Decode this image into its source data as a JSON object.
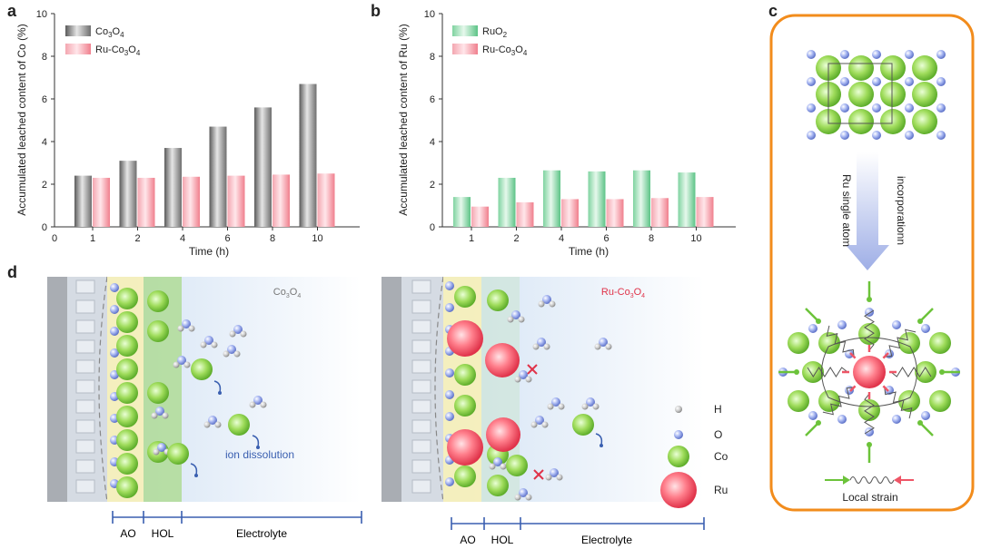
{
  "panels": {
    "a": "a",
    "b": "b",
    "c": "c",
    "d": "d"
  },
  "chart_data": [
    {
      "id": "a",
      "type": "bar",
      "xlabel": "Time (h)",
      "ylabel": "Accumulated leached content of Co (%)",
      "ylim": [
        0,
        10
      ],
      "yticks": [
        "0",
        "2",
        "4",
        "6",
        "8",
        "10"
      ],
      "x_zero_label": "0",
      "categories": [
        "1",
        "2",
        "4",
        "6",
        "8",
        "10"
      ],
      "series": [
        {
          "name": "Co3O4",
          "label_parts": [
            "Co",
            "3",
            "O",
            "4"
          ],
          "values": [
            2.4,
            3.1,
            3.7,
            4.7,
            5.6,
            6.7
          ],
          "color": "#8a8a8a"
        },
        {
          "name": "Ru-Co3O4",
          "label_parts": [
            "Ru-Co",
            "3",
            "O",
            "4"
          ],
          "values": [
            2.3,
            2.3,
            2.35,
            2.4,
            2.45,
            2.5
          ],
          "color": "#f26d7d"
        }
      ]
    },
    {
      "id": "b",
      "type": "bar",
      "xlabel": "Time (h)",
      "ylabel": "Accumulated leached content of Ru (%)",
      "ylim": [
        0,
        10
      ],
      "yticks": [
        "0",
        "2",
        "4",
        "6",
        "8",
        "10"
      ],
      "categories": [
        "1",
        "2",
        "4",
        "6",
        "8",
        "10"
      ],
      "series": [
        {
          "name": "RuO2",
          "label_parts": [
            "RuO",
            "2",
            "",
            ""
          ],
          "values": [
            1.4,
            2.3,
            2.65,
            2.6,
            2.65,
            2.55
          ],
          "color": "#5dc88a"
        },
        {
          "name": "Ru-Co3O4",
          "label_parts": [
            "Ru-Co",
            "3",
            "O",
            "4"
          ],
          "values": [
            0.95,
            1.15,
            1.3,
            1.3,
            1.35,
            1.4
          ],
          "color": "#f26d7d"
        }
      ]
    }
  ],
  "panel_c": {
    "arrow_left_label": "Ru single atom",
    "arrow_right_label": "incorporationn",
    "local_strain": "Local strain"
  },
  "panel_d": {
    "left_title_parts": [
      "Co",
      "3",
      "O",
      "4"
    ],
    "right_title_parts": [
      "Ru-Co",
      "3",
      "O",
      "4"
    ],
    "ion_dissolution": "ion dissolution",
    "legend": [
      {
        "label": "H",
        "kind": "H"
      },
      {
        "label": "O",
        "kind": "O"
      },
      {
        "label": "Co",
        "kind": "Co"
      },
      {
        "label": "Ru",
        "kind": "Ru"
      }
    ],
    "zones": {
      "ao": "AO",
      "hol": "HOL",
      "electrolyte": "Electrolyte"
    }
  }
}
